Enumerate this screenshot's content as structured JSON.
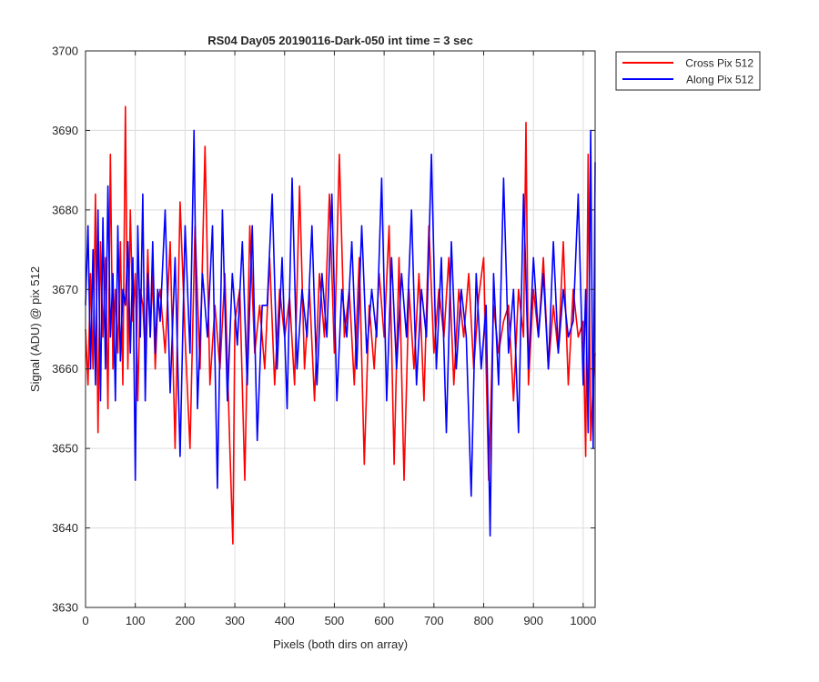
{
  "chart_data": {
    "type": "line",
    "title": "RS04 Day05 20190116-Dark-050 int time = 3 sec",
    "xlabel": "Pixels (both dirs on array)",
    "ylabel": "Signal (ADU) @ pix 512",
    "xlim": [
      0,
      1024
    ],
    "ylim": [
      3630,
      3700
    ],
    "xticks": [
      0,
      100,
      200,
      300,
      400,
      500,
      600,
      700,
      800,
      900,
      1000
    ],
    "yticks": [
      3630,
      3640,
      3650,
      3660,
      3670,
      3680,
      3690,
      3700
    ],
    "grid": true,
    "legend_position": "outside-top-right",
    "series": [
      {
        "name": "Cross Pix 512",
        "color": "#ff0000",
        "x": [
          0,
          5,
          10,
          15,
          20,
          25,
          30,
          35,
          40,
          45,
          50,
          55,
          60,
          65,
          70,
          75,
          80,
          85,
          90,
          95,
          100,
          105,
          110,
          115,
          120,
          125,
          130,
          135,
          140,
          145,
          150,
          160,
          170,
          180,
          190,
          200,
          210,
          220,
          230,
          240,
          250,
          260,
          270,
          280,
          290,
          296,
          300,
          310,
          320,
          330,
          340,
          350,
          360,
          370,
          380,
          390,
          400,
          410,
          420,
          430,
          440,
          450,
          460,
          470,
          480,
          490,
          500,
          510,
          520,
          530,
          540,
          550,
          560,
          570,
          580,
          590,
          600,
          610,
          620,
          630,
          640,
          650,
          660,
          670,
          680,
          690,
          700,
          710,
          720,
          730,
          740,
          750,
          760,
          770,
          780,
          790,
          800,
          810,
          820,
          830,
          840,
          850,
          860,
          870,
          880,
          885,
          890,
          900,
          910,
          920,
          930,
          940,
          950,
          960,
          970,
          980,
          990,
          1000,
          1005,
          1010,
          1015,
          1020,
          1024
        ],
        "y": [
          3665,
          3658,
          3672,
          3660,
          3682,
          3652,
          3676,
          3664,
          3674,
          3655,
          3687,
          3660,
          3670,
          3662,
          3676,
          3658,
          3693,
          3660,
          3680,
          3666,
          3672,
          3656,
          3670,
          3668,
          3662,
          3675,
          3664,
          3672,
          3660,
          3668,
          3670,
          3662,
          3676,
          3650,
          3681,
          3664,
          3650,
          3678,
          3660,
          3688,
          3658,
          3668,
          3660,
          3672,
          3650,
          3638,
          3666,
          3670,
          3646,
          3678,
          3662,
          3668,
          3660,
          3674,
          3658,
          3670,
          3664,
          3669,
          3658,
          3683,
          3660,
          3670,
          3656,
          3672,
          3664,
          3682,
          3662,
          3687,
          3664,
          3670,
          3658,
          3674,
          3648,
          3668,
          3660,
          3672,
          3664,
          3678,
          3648,
          3674,
          3646,
          3670,
          3660,
          3672,
          3656,
          3678,
          3662,
          3670,
          3664,
          3674,
          3658,
          3670,
          3664,
          3672,
          3660,
          3669,
          3674,
          3646,
          3668,
          3662,
          3666,
          3668,
          3656,
          3670,
          3664,
          3691,
          3658,
          3670,
          3664,
          3674,
          3660,
          3668,
          3662,
          3676,
          3658,
          3670,
          3664,
          3666,
          3649,
          3687,
          3651,
          3658,
          3662
        ]
      },
      {
        "name": "Along Pix 512",
        "color": "#0000ff",
        "x": [
          0,
          5,
          10,
          15,
          20,
          25,
          30,
          35,
          40,
          45,
          50,
          55,
          60,
          65,
          70,
          75,
          80,
          85,
          90,
          95,
          100,
          105,
          110,
          115,
          120,
          125,
          130,
          135,
          140,
          145,
          150,
          160,
          170,
          180,
          190,
          200,
          210,
          218,
          225,
          235,
          245,
          255,
          265,
          275,
          285,
          295,
          305,
          315,
          325,
          335,
          345,
          355,
          365,
          375,
          385,
          395,
          405,
          415,
          425,
          435,
          445,
          455,
          465,
          475,
          485,
          495,
          505,
          515,
          525,
          535,
          545,
          555,
          565,
          575,
          585,
          595,
          605,
          615,
          625,
          635,
          645,
          655,
          665,
          675,
          685,
          695,
          705,
          715,
          725,
          735,
          745,
          755,
          765,
          775,
          785,
          795,
          805,
          813,
          820,
          830,
          840,
          850,
          860,
          870,
          880,
          890,
          900,
          910,
          920,
          930,
          940,
          950,
          960,
          970,
          980,
          990,
          1000,
          1005,
          1010,
          1015,
          1020,
          1024
        ],
        "y": [
          3668,
          3678,
          3660,
          3675,
          3658,
          3680,
          3656,
          3679,
          3660,
          3683,
          3664,
          3672,
          3656,
          3678,
          3661,
          3670,
          3668,
          3676,
          3662,
          3674,
          3646,
          3678,
          3664,
          3682,
          3656,
          3672,
          3664,
          3676,
          3662,
          3670,
          3666,
          3680,
          3657,
          3674,
          3649,
          3678,
          3662,
          3690,
          3655,
          3672,
          3664,
          3678,
          3645,
          3680,
          3656,
          3672,
          3663,
          3676,
          3658,
          3678,
          3651,
          3668,
          3668,
          3682,
          3660,
          3674,
          3655,
          3684,
          3660,
          3670,
          3664,
          3678,
          3658,
          3672,
          3664,
          3682,
          3656,
          3670,
          3664,
          3676,
          3660,
          3678,
          3662,
          3670,
          3664,
          3684,
          3656,
          3674,
          3660,
          3672,
          3664,
          3680,
          3658,
          3670,
          3664,
          3687,
          3660,
          3674,
          3652,
          3676,
          3660,
          3670,
          3664,
          3644,
          3672,
          3660,
          3668,
          3639,
          3672,
          3658,
          3684,
          3662,
          3670,
          3652,
          3682,
          3660,
          3674,
          3664,
          3672,
          3660,
          3676,
          3662,
          3670,
          3664,
          3666,
          3682,
          3658,
          3670,
          3652,
          3690,
          3650,
          3686
        ]
      }
    ]
  }
}
